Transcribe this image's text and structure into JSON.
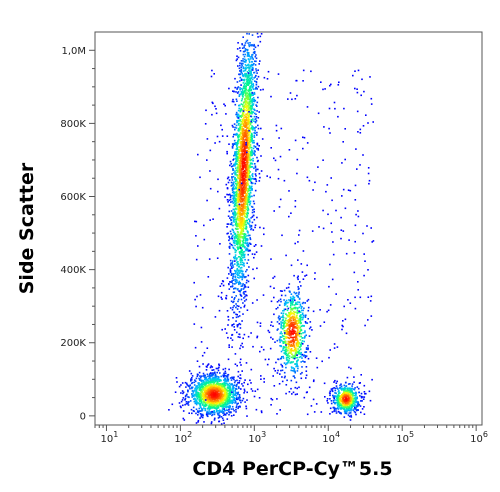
{
  "chart_data": {
    "type": "scatter",
    "title": "",
    "xlabel": "CD4 PerCP-Cy™5.5",
    "ylabel": "Side Scatter",
    "x_scale": "log",
    "xlim": [
      7,
      1200000
    ],
    "ylim": [
      -25000,
      1050000
    ],
    "x_ticks": [
      {
        "value": 10,
        "base": "10",
        "exp": "1"
      },
      {
        "value": 100,
        "base": "10",
        "exp": "2"
      },
      {
        "value": 1000,
        "base": "10",
        "exp": "3"
      },
      {
        "value": 10000,
        "base": "10",
        "exp": "4"
      },
      {
        "value": 100000,
        "base": "10",
        "exp": "5"
      },
      {
        "value": 1000000,
        "base": "10",
        "exp": "6"
      }
    ],
    "y_ticks": [
      {
        "value": 0,
        "label": "0"
      },
      {
        "value": 200000,
        "label": "200K"
      },
      {
        "value": 400000,
        "label": "400K"
      },
      {
        "value": 600000,
        "label": "600K"
      },
      {
        "value": 800000,
        "label": "800K"
      },
      {
        "value": 1000000,
        "label": "1,0M"
      }
    ],
    "grid": false,
    "color_scale": [
      "#0000ff",
      "#00bfff",
      "#00ff7f",
      "#ffff00",
      "#ff8000",
      "#ff0000"
    ],
    "populations": [
      {
        "x_center": 700,
        "x_spread_log": 0.075,
        "y_center": 680000,
        "y_spread": 185000,
        "tilt_log_per_100k": 0.022,
        "density": 2600
      },
      {
        "x_center": 280,
        "x_spread_log": 0.17,
        "y_center": 60000,
        "y_spread": 28000,
        "density": 1500
      },
      {
        "x_center": 3200,
        "x_spread_log": 0.1,
        "y_center": 230000,
        "y_spread": 60000,
        "density": 700
      },
      {
        "x_center": 17000,
        "x_spread_log": 0.09,
        "y_center": 48000,
        "y_spread": 20000,
        "density": 550
      }
    ]
  }
}
